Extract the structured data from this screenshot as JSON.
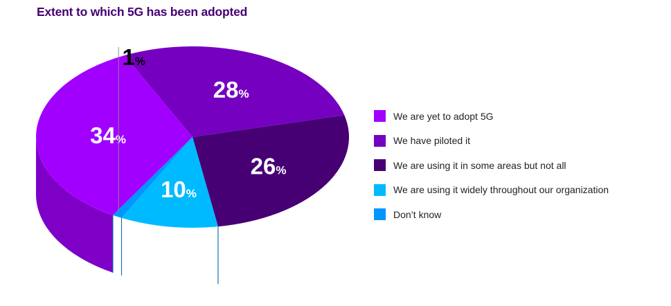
{
  "title": "Extent to which 5G has been adopted",
  "chart_data": {
    "type": "pie",
    "title": "Extent to which 5G has been adopted",
    "slices": [
      {
        "label": "We are yet to adopt 5G",
        "value": 34,
        "display": "34",
        "unit": "%",
        "color": "#a100ff"
      },
      {
        "label": "We have piloted it",
        "value": 28,
        "display": "28",
        "unit": "%",
        "color": "#7500c0"
      },
      {
        "label": "We are using it in some areas but not all",
        "value": 26,
        "display": "26",
        "unit": "%",
        "color": "#460073"
      },
      {
        "label": "We are using it widely throughout our organization",
        "value": 10,
        "display": "10",
        "unit": "%",
        "color": "#00baff"
      },
      {
        "label": "Don’t know",
        "value": 1,
        "display": "1",
        "unit": "%",
        "color": "#0096ff"
      }
    ],
    "legend_position": "right",
    "style": "3d"
  }
}
